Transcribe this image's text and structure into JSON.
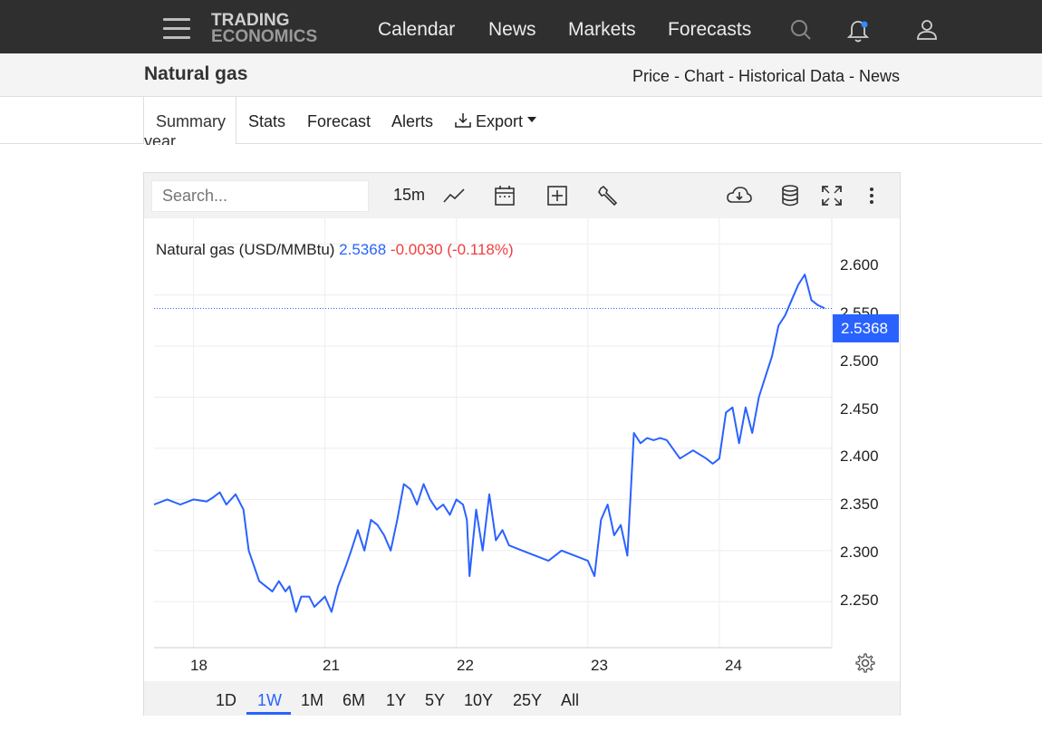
{
  "header": {
    "logo_line1": "TRADING",
    "logo_line2": "ECONOMICS",
    "nav": [
      "Calendar",
      "News",
      "Markets",
      "Forecasts"
    ]
  },
  "page": {
    "title": "Natural gas",
    "breadcrumbs": "Price - Chart - Historical Data - News",
    "tabs": [
      "Summary",
      "Stats",
      "Forecast",
      "Alerts",
      "Export"
    ],
    "active_tab": "Summary",
    "text_fragment": "year."
  },
  "chart_toolbar": {
    "search_placeholder": "Search...",
    "interval": "15m"
  },
  "legend": {
    "name": "Natural gas (USD/MMBtu)",
    "price": "2.5368",
    "change": "-0.0030 (-0.118%)"
  },
  "ranges": [
    "1D",
    "1W",
    "1M",
    "6M",
    "1Y",
    "5Y",
    "10Y",
    "25Y",
    "All"
  ],
  "active_range": "1W",
  "colors": {
    "accent": "#2962ff",
    "negative": "#ef3e3e",
    "topbar": "#2f2f2f"
  },
  "chart_data": {
    "type": "line",
    "title": "Natural gas (USD/MMBtu)",
    "last_price": "2.5368",
    "x_tick_labels": [
      "18",
      "21",
      "22",
      "23",
      "24"
    ],
    "y_tick_labels": [
      "2.600",
      "2.550",
      "2.500",
      "2.450",
      "2.400",
      "2.350",
      "2.300",
      "2.250"
    ],
    "ylim": [
      2.205,
      2.625
    ],
    "xlim": [
      0,
      5.1
    ],
    "grid": true,
    "series": [
      {
        "x": [
          0,
          0.1,
          0.2,
          0.3,
          0.4,
          0.45,
          0.5,
          0.55,
          0.62,
          0.68,
          0.72,
          0.8,
          0.9,
          0.95,
          1.0,
          1.03,
          1.08,
          1.12,
          1.18,
          1.22,
          1.3,
          1.35,
          1.4,
          1.46,
          1.5,
          1.55,
          1.6,
          1.65,
          1.7,
          1.75,
          1.8,
          1.85,
          1.9,
          1.95,
          2.0,
          2.05,
          2.1,
          2.15,
          2.2,
          2.25,
          2.3,
          2.35,
          2.38,
          2.4,
          2.45,
          2.5,
          2.55,
          2.6,
          2.65,
          2.7,
          2.8,
          2.9,
          3.0,
          3.1,
          3.2,
          3.3,
          3.35,
          3.4,
          3.45,
          3.5,
          3.55,
          3.6,
          3.65,
          3.7,
          3.75,
          3.8,
          3.85,
          3.9,
          4.0,
          4.1,
          4.2,
          4.25,
          4.3,
          4.35,
          4.4,
          4.45,
          4.5,
          4.55,
          4.6,
          4.65,
          4.7,
          4.75,
          4.8,
          4.85,
          4.9,
          4.95,
          5.0,
          5.05,
          5.1
        ],
        "values": [
          2.345,
          2.35,
          2.345,
          2.35,
          2.348,
          2.352,
          2.357,
          2.345,
          2.355,
          2.34,
          2.3,
          2.27,
          2.26,
          2.27,
          2.26,
          2.265,
          2.24,
          2.255,
          2.255,
          2.245,
          2.255,
          2.24,
          2.265,
          2.285,
          2.3,
          2.32,
          2.3,
          2.33,
          2.325,
          2.315,
          2.3,
          2.33,
          2.365,
          2.36,
          2.345,
          2.365,
          2.35,
          2.34,
          2.345,
          2.335,
          2.35,
          2.345,
          2.33,
          2.275,
          2.34,
          2.3,
          2.355,
          2.31,
          2.32,
          2.305,
          2.3,
          2.295,
          2.29,
          2.3,
          2.295,
          2.29,
          2.275,
          2.33,
          2.345,
          2.315,
          2.325,
          2.295,
          2.415,
          2.405,
          2.41,
          2.408,
          2.41,
          2.408,
          2.39,
          2.398,
          2.39,
          2.385,
          2.39,
          2.435,
          2.44,
          2.405,
          2.44,
          2.415,
          2.45,
          2.47,
          2.49,
          2.52,
          2.53,
          2.545,
          2.56,
          2.57,
          2.545,
          2.54,
          2.537
        ]
      }
    ]
  }
}
